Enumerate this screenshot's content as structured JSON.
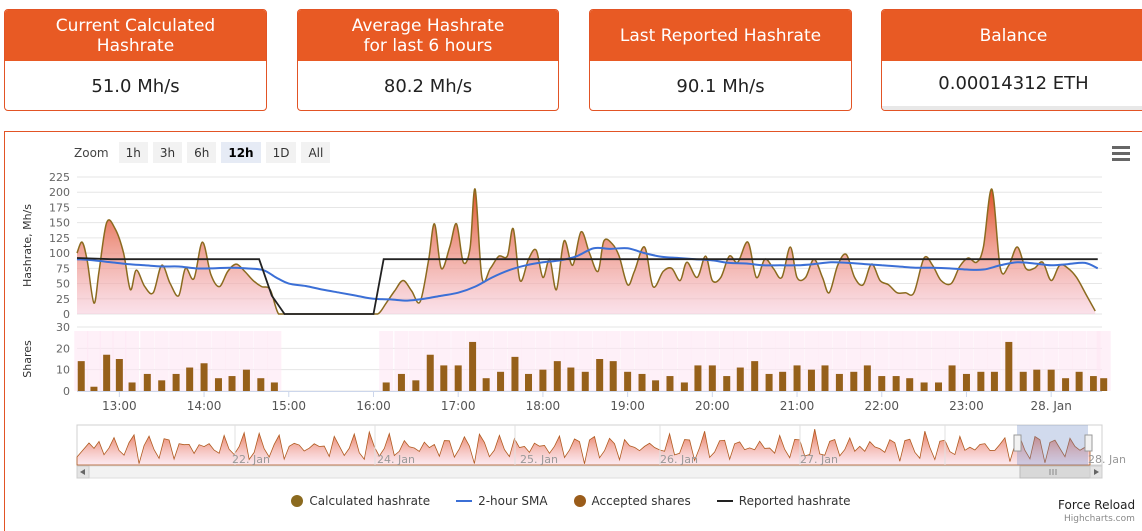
{
  "stats": [
    {
      "title": "Current Calculated\nHashrate",
      "value": "51.0 Mh/s"
    },
    {
      "title": "Average Hashrate\nfor last 6 hours",
      "value": "80.2 Mh/s"
    },
    {
      "title": "Last Reported Hashrate",
      "value": "90.1 Mh/s"
    },
    {
      "title": "Balance",
      "value": "0.00014312 ETH"
    }
  ],
  "zoom": {
    "label": "Zoom",
    "buttons": [
      "1h",
      "3h",
      "6h",
      "12h",
      "1D",
      "All"
    ],
    "active": "12h"
  },
  "chart_data": {
    "type": "area",
    "ylabel_top": "Hashrate, Mh/s",
    "ylabel_bottom": "Shares",
    "yticks_top": [
      0,
      25,
      50,
      75,
      100,
      125,
      150,
      175,
      200,
      225
    ],
    "ylim_top": [
      0,
      225
    ],
    "yticks_bottom": [
      0,
      10,
      20,
      30
    ],
    "ylim_bottom": [
      0,
      30
    ],
    "xticks": [
      "13:00",
      "14:00",
      "15:00",
      "16:00",
      "17:00",
      "18:00",
      "19:00",
      "20:00",
      "21:00",
      "22:00",
      "23:00",
      "28. Jan"
    ],
    "x_start_hour": 12.5,
    "x_end_hour": 24.6,
    "calculated_hashrate": [
      [
        12.5,
        100
      ],
      [
        12.56,
        118
      ],
      [
        12.62,
        88
      ],
      [
        12.7,
        18
      ],
      [
        12.76,
        70
      ],
      [
        12.85,
        150
      ],
      [
        12.95,
        140
      ],
      [
        13.05,
        100
      ],
      [
        13.13,
        40
      ],
      [
        13.2,
        72
      ],
      [
        13.3,
        45
      ],
      [
        13.4,
        35
      ],
      [
        13.5,
        80
      ],
      [
        13.6,
        50
      ],
      [
        13.7,
        30
      ],
      [
        13.78,
        75
      ],
      [
        13.88,
        58
      ],
      [
        13.98,
        118
      ],
      [
        14.08,
        65
      ],
      [
        14.18,
        45
      ],
      [
        14.28,
        70
      ],
      [
        14.38,
        82
      ],
      [
        14.48,
        70
      ],
      [
        14.58,
        55
      ],
      [
        14.68,
        45
      ],
      [
        14.78,
        40
      ],
      [
        14.88,
        0
      ],
      [
        15.0,
        0
      ],
      [
        15.3,
        0
      ],
      [
        15.6,
        0
      ],
      [
        15.9,
        0
      ],
      [
        16.05,
        0
      ],
      [
        16.15,
        18
      ],
      [
        16.25,
        38
      ],
      [
        16.35,
        55
      ],
      [
        16.45,
        38
      ],
      [
        16.55,
        20
      ],
      [
        16.65,
        88
      ],
      [
        16.72,
        148
      ],
      [
        16.8,
        75
      ],
      [
        16.9,
        110
      ],
      [
        16.98,
        148
      ],
      [
        17.06,
        85
      ],
      [
        17.14,
        108
      ],
      [
        17.2,
        205
      ],
      [
        17.28,
        60
      ],
      [
        17.38,
        75
      ],
      [
        17.48,
        95
      ],
      [
        17.58,
        95
      ],
      [
        17.65,
        140
      ],
      [
        17.73,
        55
      ],
      [
        17.83,
        90
      ],
      [
        17.92,
        105
      ],
      [
        18.0,
        60
      ],
      [
        18.08,
        90
      ],
      [
        18.16,
        40
      ],
      [
        18.25,
        120
      ],
      [
        18.35,
        80
      ],
      [
        18.45,
        135
      ],
      [
        18.55,
        100
      ],
      [
        18.65,
        70
      ],
      [
        18.72,
        120
      ],
      [
        18.82,
        115
      ],
      [
        18.9,
        95
      ],
      [
        19.0,
        48
      ],
      [
        19.08,
        70
      ],
      [
        19.2,
        110
      ],
      [
        19.3,
        45
      ],
      [
        19.42,
        70
      ],
      [
        19.52,
        75
      ],
      [
        19.62,
        55
      ],
      [
        19.7,
        85
      ],
      [
        19.82,
        60
      ],
      [
        19.92,
        95
      ],
      [
        20.0,
        55
      ],
      [
        20.1,
        60
      ],
      [
        20.2,
        95
      ],
      [
        20.3,
        85
      ],
      [
        20.42,
        118
      ],
      [
        20.52,
        60
      ],
      [
        20.62,
        90
      ],
      [
        20.72,
        75
      ],
      [
        20.82,
        60
      ],
      [
        20.92,
        110
      ],
      [
        21.0,
        60
      ],
      [
        21.1,
        60
      ],
      [
        21.2,
        90
      ],
      [
        21.3,
        60
      ],
      [
        21.38,
        35
      ],
      [
        21.48,
        80
      ],
      [
        21.58,
        98
      ],
      [
        21.68,
        60
      ],
      [
        21.78,
        48
      ],
      [
        21.88,
        82
      ],
      [
        21.98,
        55
      ],
      [
        22.08,
        48
      ],
      [
        22.18,
        35
      ],
      [
        22.28,
        35
      ],
      [
        22.38,
        35
      ],
      [
        22.5,
        92
      ],
      [
        22.6,
        80
      ],
      [
        22.7,
        55
      ],
      [
        22.82,
        50
      ],
      [
        22.92,
        78
      ],
      [
        23.02,
        92
      ],
      [
        23.12,
        85
      ],
      [
        23.2,
        110
      ],
      [
        23.3,
        205
      ],
      [
        23.4,
        75
      ],
      [
        23.5,
        80
      ],
      [
        23.6,
        110
      ],
      [
        23.7,
        75
      ],
      [
        23.8,
        75
      ],
      [
        23.9,
        85
      ],
      [
        24.0,
        55
      ],
      [
        24.1,
        80
      ],
      [
        24.2,
        75
      ],
      [
        24.3,
        60
      ],
      [
        24.42,
        30
      ],
      [
        24.52,
        5
      ]
    ],
    "sma_2h": [
      [
        12.5,
        90
      ],
      [
        12.7,
        88
      ],
      [
        12.9,
        85
      ],
      [
        13.1,
        82
      ],
      [
        13.3,
        80
      ],
      [
        13.5,
        78
      ],
      [
        13.7,
        78
      ],
      [
        13.9,
        75
      ],
      [
        14.1,
        75
      ],
      [
        14.3,
        76
      ],
      [
        14.5,
        75
      ],
      [
        14.7,
        72
      ],
      [
        14.85,
        60
      ],
      [
        15.0,
        50
      ],
      [
        15.2,
        46
      ],
      [
        15.4,
        40
      ],
      [
        15.6,
        35
      ],
      [
        15.8,
        30
      ],
      [
        16.0,
        25
      ],
      [
        16.2,
        24
      ],
      [
        16.4,
        22
      ],
      [
        16.6,
        25
      ],
      [
        16.8,
        30
      ],
      [
        17.0,
        35
      ],
      [
        17.2,
        45
      ],
      [
        17.4,
        60
      ],
      [
        17.6,
        72
      ],
      [
        17.8,
        80
      ],
      [
        18.0,
        85
      ],
      [
        18.2,
        88
      ],
      [
        18.4,
        95
      ],
      [
        18.6,
        108
      ],
      [
        18.8,
        107
      ],
      [
        19.0,
        108
      ],
      [
        19.2,
        100
      ],
      [
        19.4,
        94
      ],
      [
        19.6,
        92
      ],
      [
        19.8,
        90
      ],
      [
        20.0,
        88
      ],
      [
        20.2,
        84
      ],
      [
        20.4,
        83
      ],
      [
        20.6,
        80
      ],
      [
        20.8,
        80
      ],
      [
        21.0,
        80
      ],
      [
        21.2,
        82
      ],
      [
        21.4,
        85
      ],
      [
        21.6,
        84
      ],
      [
        21.8,
        82
      ],
      [
        22.0,
        80
      ],
      [
        22.2,
        78
      ],
      [
        22.4,
        76
      ],
      [
        22.6,
        76
      ],
      [
        22.8,
        75
      ],
      [
        23.0,
        73
      ],
      [
        23.2,
        73
      ],
      [
        23.4,
        80
      ],
      [
        23.6,
        85
      ],
      [
        23.8,
        83
      ],
      [
        24.0,
        80
      ],
      [
        24.2,
        82
      ],
      [
        24.4,
        84
      ],
      [
        24.55,
        75
      ]
    ],
    "reported_hashrate": [
      [
        12.5,
        92
      ],
      [
        12.9,
        90
      ],
      [
        13.0,
        90
      ],
      [
        13.5,
        90
      ],
      [
        14.0,
        90
      ],
      [
        14.5,
        90
      ],
      [
        14.65,
        90
      ],
      [
        14.8,
        30
      ],
      [
        14.95,
        0
      ],
      [
        15.9,
        0
      ],
      [
        16.0,
        0
      ],
      [
        16.12,
        90
      ],
      [
        16.5,
        90
      ],
      [
        17.0,
        90
      ],
      [
        17.5,
        90
      ],
      [
        18.0,
        90
      ],
      [
        18.5,
        90
      ],
      [
        19.0,
        90
      ],
      [
        19.5,
        90
      ],
      [
        20.0,
        90
      ],
      [
        20.5,
        90
      ],
      [
        21.0,
        90
      ],
      [
        21.5,
        90
      ],
      [
        22.0,
        90
      ],
      [
        22.5,
        90
      ],
      [
        23.0,
        90
      ],
      [
        23.5,
        90
      ],
      [
        24.0,
        90
      ],
      [
        24.55,
        90
      ]
    ],
    "accepted_shares": [
      [
        12.55,
        14
      ],
      [
        12.7,
        2
      ],
      [
        12.85,
        17
      ],
      [
        13.0,
        15
      ],
      [
        13.15,
        4
      ],
      [
        13.33,
        8
      ],
      [
        13.5,
        5
      ],
      [
        13.67,
        8
      ],
      [
        13.83,
        11
      ],
      [
        14.0,
        13
      ],
      [
        14.17,
        6
      ],
      [
        14.33,
        7
      ],
      [
        14.5,
        10
      ],
      [
        14.67,
        6
      ],
      [
        14.83,
        4
      ],
      [
        16.15,
        4
      ],
      [
        16.33,
        8
      ],
      [
        16.5,
        5
      ],
      [
        16.67,
        17
      ],
      [
        16.83,
        12
      ],
      [
        17.0,
        12
      ],
      [
        17.17,
        23
      ],
      [
        17.33,
        6
      ],
      [
        17.5,
        9
      ],
      [
        17.67,
        16
      ],
      [
        17.83,
        8
      ],
      [
        18.0,
        10
      ],
      [
        18.17,
        14
      ],
      [
        18.33,
        11
      ],
      [
        18.5,
        9
      ],
      [
        18.67,
        15
      ],
      [
        18.83,
        14
      ],
      [
        19.0,
        9
      ],
      [
        19.17,
        8
      ],
      [
        19.33,
        5
      ],
      [
        19.5,
        7
      ],
      [
        19.67,
        4
      ],
      [
        19.83,
        12
      ],
      [
        20.0,
        12
      ],
      [
        20.17,
        7
      ],
      [
        20.33,
        11
      ],
      [
        20.5,
        14
      ],
      [
        20.67,
        8
      ],
      [
        20.83,
        9
      ],
      [
        21.0,
        12
      ],
      [
        21.17,
        10
      ],
      [
        21.33,
        12
      ],
      [
        21.5,
        8
      ],
      [
        21.67,
        9
      ],
      [
        21.83,
        12
      ],
      [
        22.0,
        7
      ],
      [
        22.17,
        7
      ],
      [
        22.33,
        6
      ],
      [
        22.5,
        4
      ],
      [
        22.67,
        4
      ],
      [
        22.83,
        12
      ],
      [
        23.0,
        8
      ],
      [
        23.17,
        9
      ],
      [
        23.33,
        9
      ],
      [
        23.5,
        23
      ],
      [
        23.67,
        9
      ],
      [
        23.83,
        10
      ],
      [
        24.0,
        10
      ],
      [
        24.17,
        6
      ],
      [
        24.33,
        9
      ],
      [
        24.5,
        7
      ],
      [
        24.62,
        6
      ]
    ],
    "navigator_labels": [
      "22. Jan",
      "24. Jan",
      "25. Jan",
      "26. Jan",
      "27. Jan",
      "28. Jan"
    ]
  },
  "legend": [
    {
      "label": "Calculated hashrate",
      "color": "#8b6a1f",
      "shape": "dot"
    },
    {
      "label": "2-hour SMA",
      "color": "#3b6fd6",
      "shape": "line"
    },
    {
      "label": "Accepted shares",
      "color": "#9a5c1a",
      "shape": "dot"
    },
    {
      "label": "Reported hashrate",
      "color": "#222222",
      "shape": "line"
    }
  ],
  "force_reload": "Force Reload",
  "credits": "Highcharts.com",
  "colors": {
    "accent": "#e85a24",
    "area_top": "#e04a1c",
    "area_line": "#8b6a1f",
    "sma": "#3b6fd6",
    "reported": "#222222",
    "shares": "#96601a"
  }
}
